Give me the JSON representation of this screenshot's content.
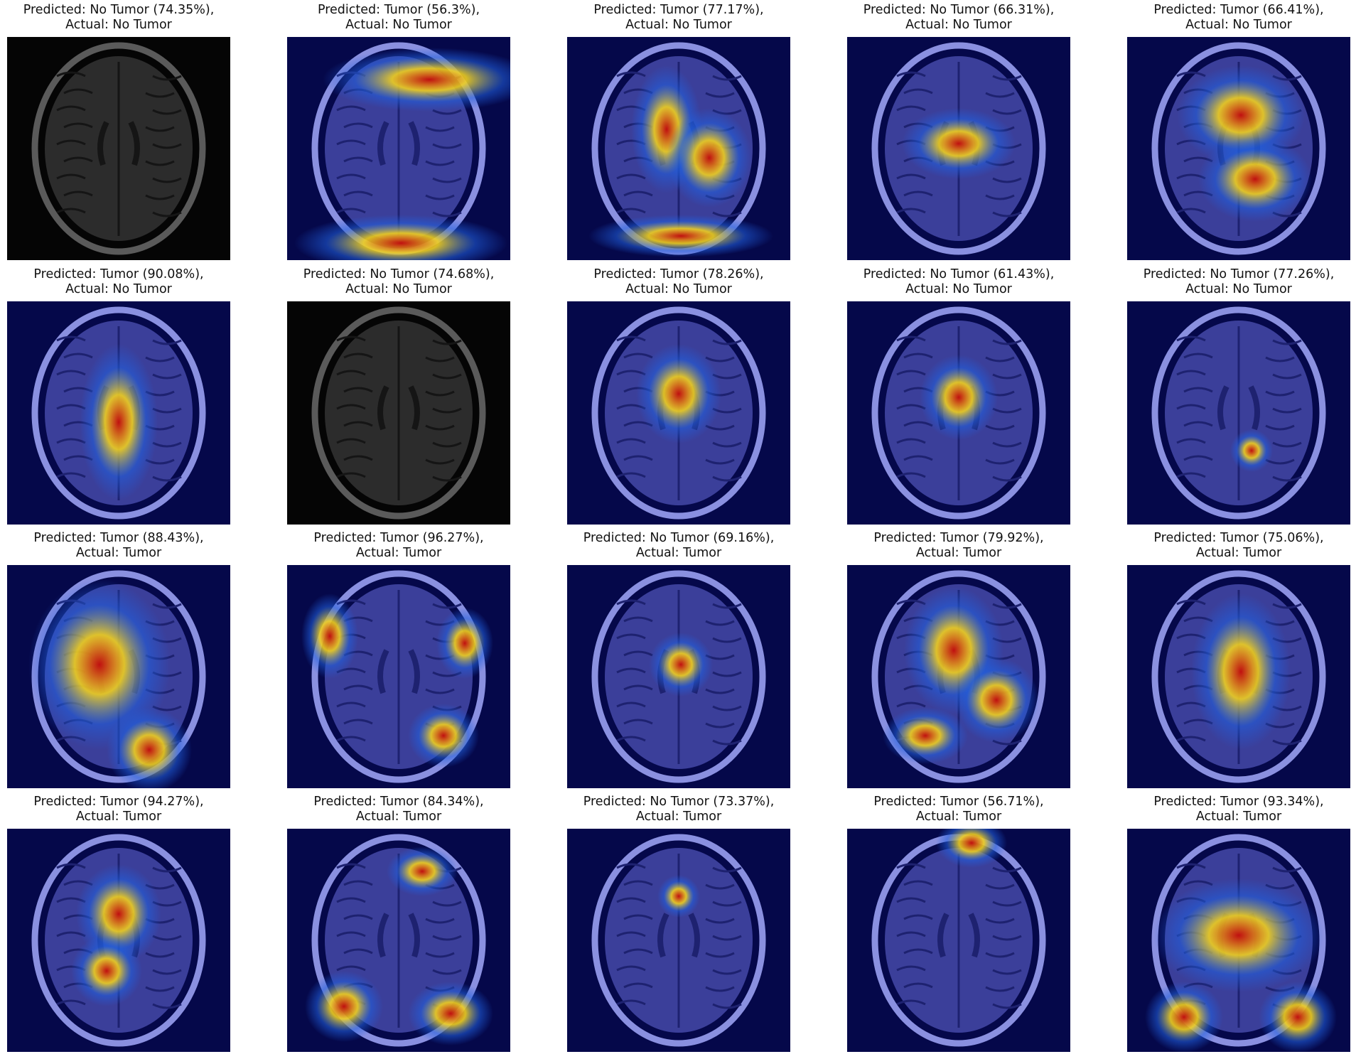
{
  "panels": [
    {
      "predicted": "Predicted: No Tumor (74.35%),",
      "actual": "Actual: No Tumor",
      "style": "gray"
    },
    {
      "predicted": "Predicted: Tumor (56.3%),",
      "actual": "Actual: No Tumor",
      "style": "heat"
    },
    {
      "predicted": "Predicted: Tumor (77.17%),",
      "actual": "Actual: No Tumor",
      "style": "heat"
    },
    {
      "predicted": "Predicted: No Tumor (66.31%),",
      "actual": "Actual: No Tumor",
      "style": "heat"
    },
    {
      "predicted": "Predicted: Tumor (66.41%),",
      "actual": "Actual: No Tumor",
      "style": "heat"
    },
    {
      "predicted": "Predicted: Tumor (90.08%),",
      "actual": "Actual: No Tumor",
      "style": "heat"
    },
    {
      "predicted": "Predicted: No Tumor (74.68%),",
      "actual": "Actual: No Tumor",
      "style": "gray"
    },
    {
      "predicted": "Predicted: Tumor (78.26%),",
      "actual": "Actual: No Tumor",
      "style": "heat"
    },
    {
      "predicted": "Predicted: No Tumor (61.43%),",
      "actual": "Actual: No Tumor",
      "style": "heat"
    },
    {
      "predicted": "Predicted: No Tumor (77.26%),",
      "actual": "Actual: No Tumor",
      "style": "heat"
    },
    {
      "predicted": "Predicted: Tumor (88.43%),",
      "actual": "Actual: Tumor",
      "style": "heat"
    },
    {
      "predicted": "Predicted: Tumor (96.27%),",
      "actual": "Actual: Tumor",
      "style": "heat"
    },
    {
      "predicted": "Predicted: No Tumor (69.16%),",
      "actual": "Actual: Tumor",
      "style": "heat"
    },
    {
      "predicted": "Predicted: Tumor (79.92%),",
      "actual": "Actual: Tumor",
      "style": "heat"
    },
    {
      "predicted": "Predicted: Tumor (75.06%),",
      "actual": "Actual: Tumor",
      "style": "heat"
    },
    {
      "predicted": "Predicted: Tumor (94.27%),",
      "actual": "Actual: Tumor",
      "style": "heat"
    },
    {
      "predicted": "Predicted: Tumor (84.34%),",
      "actual": "Actual: Tumor",
      "style": "heat"
    },
    {
      "predicted": "Predicted: No Tumor (73.37%),",
      "actual": "Actual: Tumor",
      "style": "heat"
    },
    {
      "predicted": "Predicted: Tumor (56.71%),",
      "actual": "Actual: Tumor",
      "style": "heat"
    },
    {
      "predicted": "Predicted: Tumor (93.34%),",
      "actual": "Actual: Tumor",
      "style": "heat"
    }
  ],
  "colors": {
    "background_dark": "#05084a",
    "heat_hot": "#c01010",
    "heat_warm": "#f0d020",
    "heat_cool": "#2060e0",
    "caption_text": "#111111"
  }
}
